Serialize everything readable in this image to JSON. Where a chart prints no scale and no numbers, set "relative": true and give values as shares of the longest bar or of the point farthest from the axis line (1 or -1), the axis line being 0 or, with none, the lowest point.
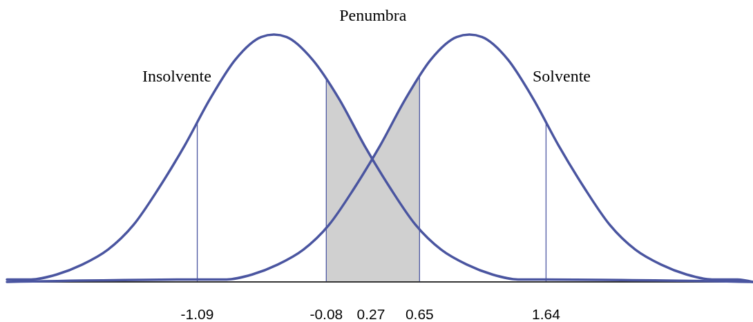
{
  "chart_data": {
    "type": "line",
    "relative": true,
    "xlim": [
      -2.58,
      3.26
    ],
    "xticks": [
      -1.09,
      -0.08,
      0.27,
      0.65,
      1.64
    ],
    "legend": false,
    "grid": false,
    "marker": "none",
    "line_style": "solid",
    "series": [
      {
        "name": "Insolvente",
        "color": "#4a55a0",
        "x": [
          -2.58,
          -2.39,
          -2.19,
          -1.99,
          -1.79,
          -1.59,
          -1.39,
          -1.19,
          -0.99,
          -0.79,
          -0.59,
          -0.49,
          -0.39,
          -0.19,
          0.02,
          0.22,
          0.42,
          0.62,
          0.82,
          1.02,
          1.22,
          1.42,
          1.62,
          3.26
        ],
        "values": [
          0.01,
          0.01,
          0.03,
          0.07,
          0.13,
          0.23,
          0.38,
          0.55,
          0.74,
          0.9,
          0.99,
          1,
          0.99,
          0.9,
          0.74,
          0.55,
          0.38,
          0.23,
          0.13,
          0.07,
          0.03,
          0.01,
          0.01,
          0
        ]
      },
      {
        "name": "Solvente",
        "color": "#4a55a0",
        "x": [
          -2.58,
          -1.06,
          -0.86,
          -0.66,
          -0.46,
          -0.26,
          -0.06,
          0.14,
          0.34,
          0.54,
          0.74,
          0.94,
          1.04,
          1.14,
          1.34,
          1.54,
          1.74,
          1.94,
          2.14,
          2.34,
          2.54,
          2.74,
          2.94,
          3.14,
          3.26
        ],
        "values": [
          0,
          0.01,
          0.01,
          0.03,
          0.07,
          0.13,
          0.23,
          0.38,
          0.55,
          0.74,
          0.9,
          0.99,
          1,
          0.99,
          0.9,
          0.74,
          0.55,
          0.38,
          0.23,
          0.13,
          0.07,
          0.03,
          0.01,
          0.01,
          0
        ]
      }
    ],
    "ref_lines": [
      {
        "axis": "x",
        "value": -1.09,
        "color": "#4a55a0"
      },
      {
        "axis": "x",
        "value": -0.08,
        "color": "#4a55a0"
      },
      {
        "axis": "x",
        "value": 0.65,
        "color": "#4a55a0"
      },
      {
        "axis": "x",
        "value": 1.64,
        "color": "#4a55a0"
      }
    ],
    "bands": [
      {
        "axis": "x",
        "from": -0.08,
        "to": 0.65,
        "label": "Penumbra",
        "color": "#d0d0d0"
      }
    ]
  }
}
